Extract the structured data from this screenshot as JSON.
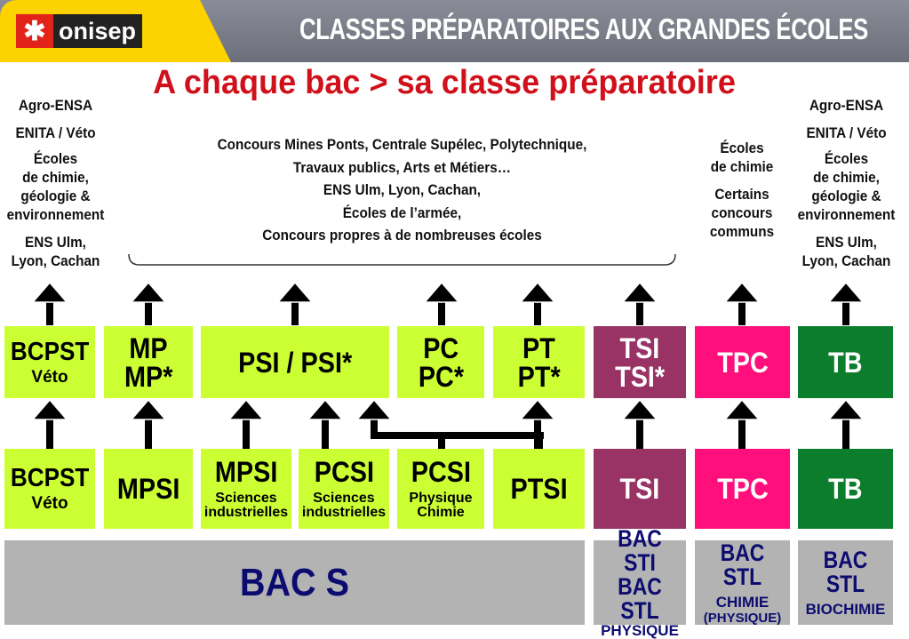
{
  "header": {
    "logo_text": "onisep",
    "title": "CLASSES PRÉPARATOIRES AUX GRANDES ÉCOLES",
    "colors": {
      "yellow": "#fcd200",
      "grey": "#7b7e88",
      "logo_red": "#e2231a"
    }
  },
  "subtitle": "A chaque bac > sa classe préparatoire",
  "outcomes": {
    "left": [
      "Agro-ENSA",
      "ENITA / Véto",
      "Écoles",
      "de chimie,",
      "géologie &",
      "environnement",
      "ENS Ulm,",
      "Lyon, Cachan"
    ],
    "middle": [
      "Concours Mines Ponts, Centrale Supélec, Polytechnique,",
      "Travaux publics, Arts et Métiers…",
      "ENS Ulm, Lyon, Cachan,",
      "Écoles de l’armée,",
      "Concours propres à de nombreuses écoles"
    ],
    "chimie": [
      "Écoles",
      "de chimie",
      "Certains",
      "concours",
      "communs"
    ],
    "right": [
      "Agro-ENSA",
      "ENITA / Véto",
      "Écoles",
      "de chimie,",
      "géologie &",
      "environnement",
      "ENS Ulm,",
      "Lyon, Cachan"
    ]
  },
  "second_year": [
    {
      "line1": "BCPST",
      "line2": "Véto"
    },
    {
      "line1": "MP",
      "line2": "MP*"
    },
    {
      "line1": "PSI / PSI*"
    },
    {
      "line1": "PC",
      "line2": "PC*"
    },
    {
      "line1": "PT",
      "line2": "PT*"
    },
    {
      "line1": "TSI",
      "line2": "TSI*"
    },
    {
      "line1": "TPC"
    },
    {
      "line1": "TB"
    }
  ],
  "first_year": [
    {
      "line1": "BCPST",
      "line2": "Véto"
    },
    {
      "line1": "MPSI"
    },
    {
      "line1": "MPSI",
      "line2": "Sciences",
      "line3": "industrielles"
    },
    {
      "line1": "PCSI",
      "line2": "Sciences",
      "line3": "industrielles"
    },
    {
      "line1": "PCSI",
      "line2": "Physique",
      "line3": "Chimie"
    },
    {
      "line1": "PTSI"
    },
    {
      "line1": "TSI"
    },
    {
      "line1": "TPC"
    },
    {
      "line1": "TB"
    }
  ],
  "bacs": [
    {
      "line1": "BAC S"
    },
    {
      "line1": "BAC STI",
      "line2": "BAC STL",
      "line3": "PHYSIQUE"
    },
    {
      "line1": "BAC STL",
      "line2": "CHIMIE",
      "line3": "(PHYSIQUE)"
    },
    {
      "line1": "BAC STL",
      "line2": "BIOCHIMIE"
    }
  ],
  "colors": {
    "lime": "#ccff33",
    "plum": "#993366",
    "pink": "#ff0f7b",
    "green": "#0c7d2c",
    "bac_grey": "#b3b3b3",
    "bac_text": "#0c0c70",
    "subtitle_red": "#d0101a"
  }
}
